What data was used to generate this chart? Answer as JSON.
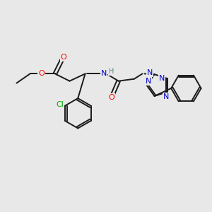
{
  "background_color": "#e8e8e8",
  "bond_color": "#1a1a1a",
  "atom_colors": {
    "O": "#ff0000",
    "N": "#0000cc",
    "Cl": "#00aa00",
    "H": "#558888",
    "C": "#1a1a1a"
  },
  "figsize": [
    3.0,
    3.0
  ],
  "dpi": 100,
  "xlim": [
    0,
    10
  ],
  "ylim": [
    0,
    10
  ]
}
